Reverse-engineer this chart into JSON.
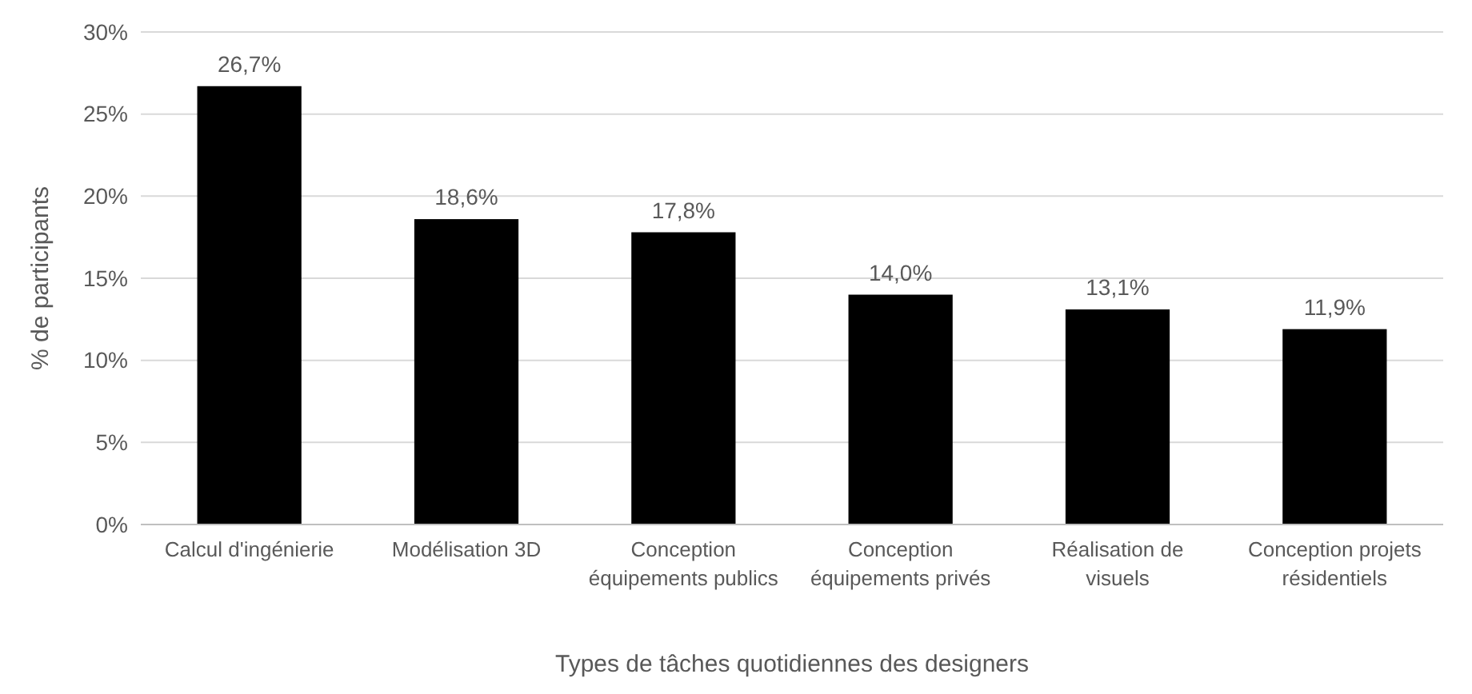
{
  "chart_data": {
    "type": "bar",
    "xlabel": "Types de tâches quotidiennes des designers",
    "ylabel": "% de participants",
    "categories": [
      "Calcul d'ingénierie",
      "Modélisation 3D",
      "Conception équipements publics",
      "Conception équipements privés",
      "Réalisation de visuels",
      "Conception projets résidentiels"
    ],
    "values": [
      26.7,
      18.6,
      17.8,
      14.0,
      13.1,
      11.9
    ],
    "value_labels": [
      "26,7%",
      "18,6%",
      "17,8%",
      "14,0%",
      "13,1%",
      "11,9%"
    ],
    "color": "#000000",
    "ylim": [
      0,
      30
    ],
    "yticks": [
      {
        "value": 0,
        "label": "0%"
      },
      {
        "value": 5,
        "label": "5%"
      },
      {
        "value": 10,
        "label": "10%"
      },
      {
        "value": 15,
        "label": "15%"
      },
      {
        "value": 20,
        "label": "20%"
      },
      {
        "value": 25,
        "label": "25%"
      },
      {
        "value": 30,
        "label": "30%"
      }
    ],
    "grid": "y"
  }
}
